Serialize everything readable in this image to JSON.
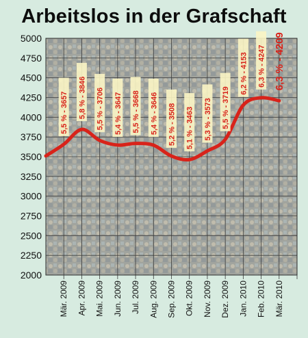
{
  "chart_data": {
    "type": "line",
    "title": "Arbeitslos in der Grafschaft",
    "xlabel": "",
    "ylabel": "",
    "ylim": [
      2000,
      5000
    ],
    "yticks": [
      2000,
      2250,
      2500,
      2750,
      3000,
      3250,
      3500,
      3750,
      4000,
      4250,
      4500,
      4750,
      5000
    ],
    "grid": true,
    "categories": [
      "Mär. 2009",
      "Apr. 2009",
      "Mai. 2009",
      "Jun. 2009",
      "Jul. 2009",
      "Aug. 2009",
      "Sep. 2009",
      "Okt. 2009",
      "Nov. 2009",
      "Dez. 2009",
      "Jan. 2010",
      "Feb. 2010",
      "Mär. 2010"
    ],
    "values": [
      3657,
      3846,
      3706,
      3647,
      3668,
      3646,
      3508,
      3463,
      3573,
      3719,
      4153,
      4247,
      4209
    ],
    "data_labels": [
      "5,5 % - 3657",
      "5,8 % - 3846",
      "5,5 % - 3706",
      "5,4 % - 3647",
      "5,5 % - 3668",
      "5,4 % - 3646",
      "5,2 % - 3508",
      "5,1 % - 3463",
      "5,3 % - 3573",
      "5,5 % - 3719",
      "6,2 % - 4153",
      "6,3 % - 4247",
      "6,3 % - 4209"
    ],
    "line_color": "#d8231a",
    "label_bg_color": "#fbf5c4"
  }
}
